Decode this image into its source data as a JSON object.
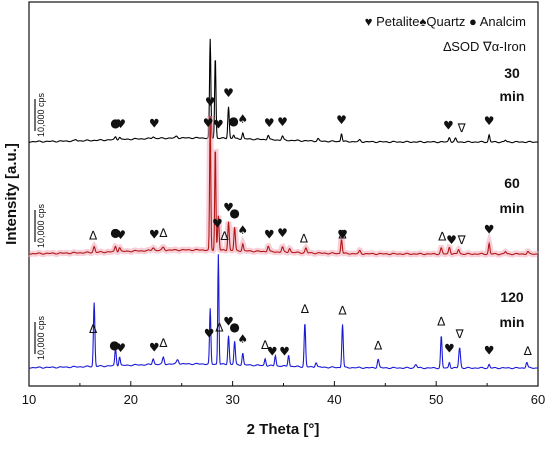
{
  "chart_data": {
    "type": "line",
    "xlabel": "2 Theta [°]",
    "ylabel": "Intensity [a.u.]",
    "xlim": [
      10,
      60
    ],
    "xticks": [
      10,
      20,
      30,
      40,
      50,
      60
    ],
    "x_tick_labels": [
      "10",
      "20",
      "30",
      "40",
      "50",
      "60"
    ],
    "scale_bar_label": "10,000 cps",
    "legend": {
      "petalite": {
        "symbol": "♥",
        "label": "Petalite"
      },
      "quartz": {
        "symbol": "♠",
        "label": "Quartz"
      },
      "analcim": {
        "symbol": "●",
        "label": "Analcim"
      },
      "sod": {
        "symbol": "∆",
        "label": "SOD"
      },
      "iron": {
        "symbol": "∇",
        "label": "α-Iron"
      }
    },
    "series": [
      {
        "name": "30 min",
        "label_lines": [
          "30",
          "min"
        ],
        "color": "#000000",
        "baseline": 0,
        "peaks": [
          [
            14.6,
            0.02,
            0.12
          ],
          [
            18.5,
            0.05,
            0.12
          ],
          [
            18.9,
            0.04,
            0.12
          ],
          [
            22.2,
            0.03,
            0.15
          ],
          [
            24.5,
            0.03,
            0.15
          ],
          [
            27.8,
            1.7,
            0.09
          ],
          [
            28.3,
            1.4,
            0.09
          ],
          [
            29.6,
            0.55,
            0.1
          ],
          [
            30.1,
            0.06,
            0.1
          ],
          [
            31.0,
            0.1,
            0.1
          ],
          [
            33.5,
            0.08,
            0.12
          ],
          [
            34.9,
            0.07,
            0.12
          ],
          [
            38.4,
            0.04,
            0.12
          ],
          [
            40.7,
            0.14,
            0.1
          ],
          [
            42.5,
            0.03,
            0.12
          ],
          [
            51.3,
            0.08,
            0.12
          ],
          [
            51.9,
            0.06,
            0.12
          ],
          [
            55.2,
            0.12,
            0.1
          ],
          [
            56.8,
            0.03,
            0.12
          ]
        ]
      },
      {
        "name": "60 min",
        "label_lines": [
          "60",
          "min"
        ],
        "color": "#b01818",
        "baseline": 0,
        "peaks": [
          [
            16.4,
            0.1,
            0.12
          ],
          [
            18.5,
            0.09,
            0.12
          ],
          [
            18.9,
            0.07,
            0.12
          ],
          [
            22.2,
            0.05,
            0.15
          ],
          [
            23.2,
            0.05,
            0.15
          ],
          [
            27.8,
            2.3,
            0.08
          ],
          [
            28.3,
            1.8,
            0.08
          ],
          [
            28.6,
            0.6,
            0.1
          ],
          [
            29.6,
            0.5,
            0.1
          ],
          [
            30.2,
            0.4,
            0.1
          ],
          [
            31.0,
            0.12,
            0.1
          ],
          [
            33.5,
            0.1,
            0.12
          ],
          [
            34.9,
            0.09,
            0.12
          ],
          [
            35.6,
            0.07,
            0.12
          ],
          [
            37.2,
            0.08,
            0.12
          ],
          [
            40.7,
            0.25,
            0.1
          ],
          [
            42.5,
            0.05,
            0.12
          ],
          [
            50.5,
            0.1,
            0.12
          ],
          [
            51.3,
            0.12,
            0.12
          ],
          [
            52.2,
            0.08,
            0.12
          ],
          [
            55.2,
            0.18,
            0.1
          ],
          [
            56.8,
            0.04,
            0.12
          ],
          [
            59.0,
            0.04,
            0.12
          ]
        ]
      },
      {
        "name": "120 min",
        "label_lines": [
          "120",
          "min"
        ],
        "color": "#1a1ad6",
        "baseline": 0,
        "peaks": [
          [
            16.4,
            1.1,
            0.1
          ],
          [
            18.5,
            0.3,
            0.1
          ],
          [
            18.9,
            0.15,
            0.1
          ],
          [
            22.2,
            0.1,
            0.12
          ],
          [
            23.2,
            0.12,
            0.12
          ],
          [
            24.6,
            0.08,
            0.15
          ],
          [
            27.8,
            0.95,
            0.09
          ],
          [
            28.6,
            1.9,
            0.08
          ],
          [
            29.6,
            0.5,
            0.1
          ],
          [
            30.2,
            0.4,
            0.1
          ],
          [
            31.0,
            0.2,
            0.1
          ],
          [
            33.2,
            0.12,
            0.1
          ],
          [
            34.2,
            0.18,
            0.1
          ],
          [
            35.5,
            0.2,
            0.1
          ],
          [
            37.1,
            0.75,
            0.1
          ],
          [
            38.2,
            0.08,
            0.12
          ],
          [
            40.8,
            0.75,
            0.1
          ],
          [
            44.3,
            0.15,
            0.12
          ],
          [
            48.0,
            0.06,
            0.15
          ],
          [
            50.5,
            0.55,
            0.1
          ],
          [
            51.3,
            0.1,
            0.1
          ],
          [
            52.3,
            0.35,
            0.12
          ],
          [
            55.2,
            0.06,
            0.1
          ],
          [
            58.9,
            0.1,
            0.12
          ]
        ]
      }
    ],
    "annotations": [
      {
        "series": 0,
        "marker": "analcim",
        "x": 18.5
      },
      {
        "series": 0,
        "marker": "petalite",
        "x": 19.0
      },
      {
        "series": 0,
        "marker": "petalite",
        "x": 22.3
      },
      {
        "series": 0,
        "marker": "petalite",
        "x": 27.6
      },
      {
        "series": 0,
        "marker": "petalite",
        "x": 28.6
      },
      {
        "series": 0,
        "marker": "petalite",
        "x": 29.6
      },
      {
        "series": 0,
        "marker": "analcim",
        "x": 30.1
      },
      {
        "series": 0,
        "marker": "quartz",
        "x": 31.0
      },
      {
        "series": 0,
        "marker": "petalite",
        "x": 33.6
      },
      {
        "series": 0,
        "marker": "petalite",
        "x": 34.9
      },
      {
        "series": 0,
        "marker": "petalite",
        "x": 40.7
      },
      {
        "series": 0,
        "marker": "petalite",
        "x": 51.2
      },
      {
        "series": 0,
        "marker": "iron",
        "x": 52.5
      },
      {
        "series": 0,
        "marker": "petalite",
        "x": 55.2
      },
      {
        "series": 1,
        "marker": "sod",
        "x": 16.3
      },
      {
        "series": 1,
        "marker": "analcim",
        "x": 18.5
      },
      {
        "series": 1,
        "marker": "petalite",
        "x": 19.0
      },
      {
        "series": 1,
        "marker": "petalite",
        "x": 22.3
      },
      {
        "series": 1,
        "marker": "sod",
        "x": 23.2
      },
      {
        "series": 1,
        "marker": "petalite",
        "x": 27.8
      },
      {
        "series": 1,
        "marker": "petalite",
        "x": 28.5
      },
      {
        "series": 1,
        "marker": "sod",
        "x": 29.2
      },
      {
        "series": 1,
        "marker": "petalite",
        "x": 29.6
      },
      {
        "series": 1,
        "marker": "analcim",
        "x": 30.2
      },
      {
        "series": 1,
        "marker": "quartz",
        "x": 31.0
      },
      {
        "series": 1,
        "marker": "petalite",
        "x": 33.6
      },
      {
        "series": 1,
        "marker": "petalite",
        "x": 34.9
      },
      {
        "series": 1,
        "marker": "sod",
        "x": 37.0
      },
      {
        "series": 1,
        "marker": "petalite",
        "x": 40.8
      },
      {
        "series": 1,
        "marker": "sod",
        "x": 40.8
      },
      {
        "series": 1,
        "marker": "sod",
        "x": 50.6
      },
      {
        "series": 1,
        "marker": "petalite",
        "x": 51.5
      },
      {
        "series": 1,
        "marker": "iron",
        "x": 52.5
      },
      {
        "series": 1,
        "marker": "petalite",
        "x": 55.2
      },
      {
        "series": 2,
        "marker": "sod",
        "x": 16.3
      },
      {
        "series": 2,
        "marker": "analcim",
        "x": 18.4
      },
      {
        "series": 2,
        "marker": "petalite",
        "x": 19.0
      },
      {
        "series": 2,
        "marker": "petalite",
        "x": 22.3
      },
      {
        "series": 2,
        "marker": "sod",
        "x": 23.2
      },
      {
        "series": 2,
        "marker": "petalite",
        "x": 27.7
      },
      {
        "series": 2,
        "marker": "sod",
        "x": 28.7
      },
      {
        "series": 2,
        "marker": "petalite",
        "x": 29.6
      },
      {
        "series": 2,
        "marker": "analcim",
        "x": 30.2
      },
      {
        "series": 2,
        "marker": "quartz",
        "x": 31.0
      },
      {
        "series": 2,
        "marker": "sod",
        "x": 33.2
      },
      {
        "series": 2,
        "marker": "petalite",
        "x": 33.9
      },
      {
        "series": 2,
        "marker": "petalite",
        "x": 35.1
      },
      {
        "series": 2,
        "marker": "sod",
        "x": 37.1
      },
      {
        "series": 2,
        "marker": "sod",
        "x": 40.8
      },
      {
        "series": 2,
        "marker": "sod",
        "x": 44.3
      },
      {
        "series": 2,
        "marker": "sod",
        "x": 50.5
      },
      {
        "series": 2,
        "marker": "petalite",
        "x": 51.3
      },
      {
        "series": 2,
        "marker": "iron",
        "x": 52.3
      },
      {
        "series": 2,
        "marker": "petalite",
        "x": 55.2
      },
      {
        "series": 2,
        "marker": "sod",
        "x": 59.0
      }
    ]
  }
}
